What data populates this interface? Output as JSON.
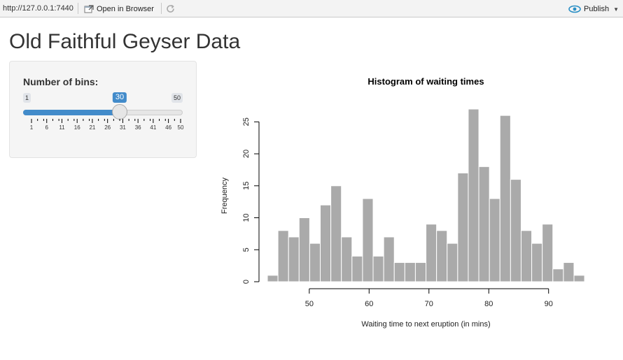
{
  "toolbar": {
    "url": "http://127.0.0.1:7440",
    "open_in_browser": "Open in Browser",
    "publish": "Publish"
  },
  "page": {
    "title": "Old Faithful Geyser Data"
  },
  "slider": {
    "label": "Number of bins:",
    "min": 1,
    "max": 50,
    "value": 30,
    "min_label": "1",
    "max_label": "50",
    "value_label": "30",
    "grid_labels": [
      "1",
      "6",
      "11",
      "16",
      "21",
      "26",
      "31",
      "36",
      "41",
      "46",
      "50"
    ]
  },
  "chart_data": {
    "type": "bar",
    "title": "Histogram of waiting times",
    "xlabel": "Waiting time to next eruption (in mins)",
    "ylabel": "Frequency",
    "bin_start": 43.0,
    "bin_width": 1.767,
    "values": [
      1,
      8,
      7,
      10,
      6,
      12,
      15,
      7,
      4,
      13,
      4,
      7,
      3,
      3,
      3,
      9,
      8,
      6,
      17,
      27,
      18,
      13,
      26,
      16,
      8,
      6,
      9,
      2,
      3,
      1
    ],
    "xticks": [
      50,
      60,
      70,
      80,
      90
    ],
    "yticks": [
      0,
      5,
      10,
      15,
      20,
      25
    ],
    "xlim": [
      43,
      96
    ],
    "ylim": [
      0,
      27
    ],
    "bar_color": "#aaaaaa"
  }
}
